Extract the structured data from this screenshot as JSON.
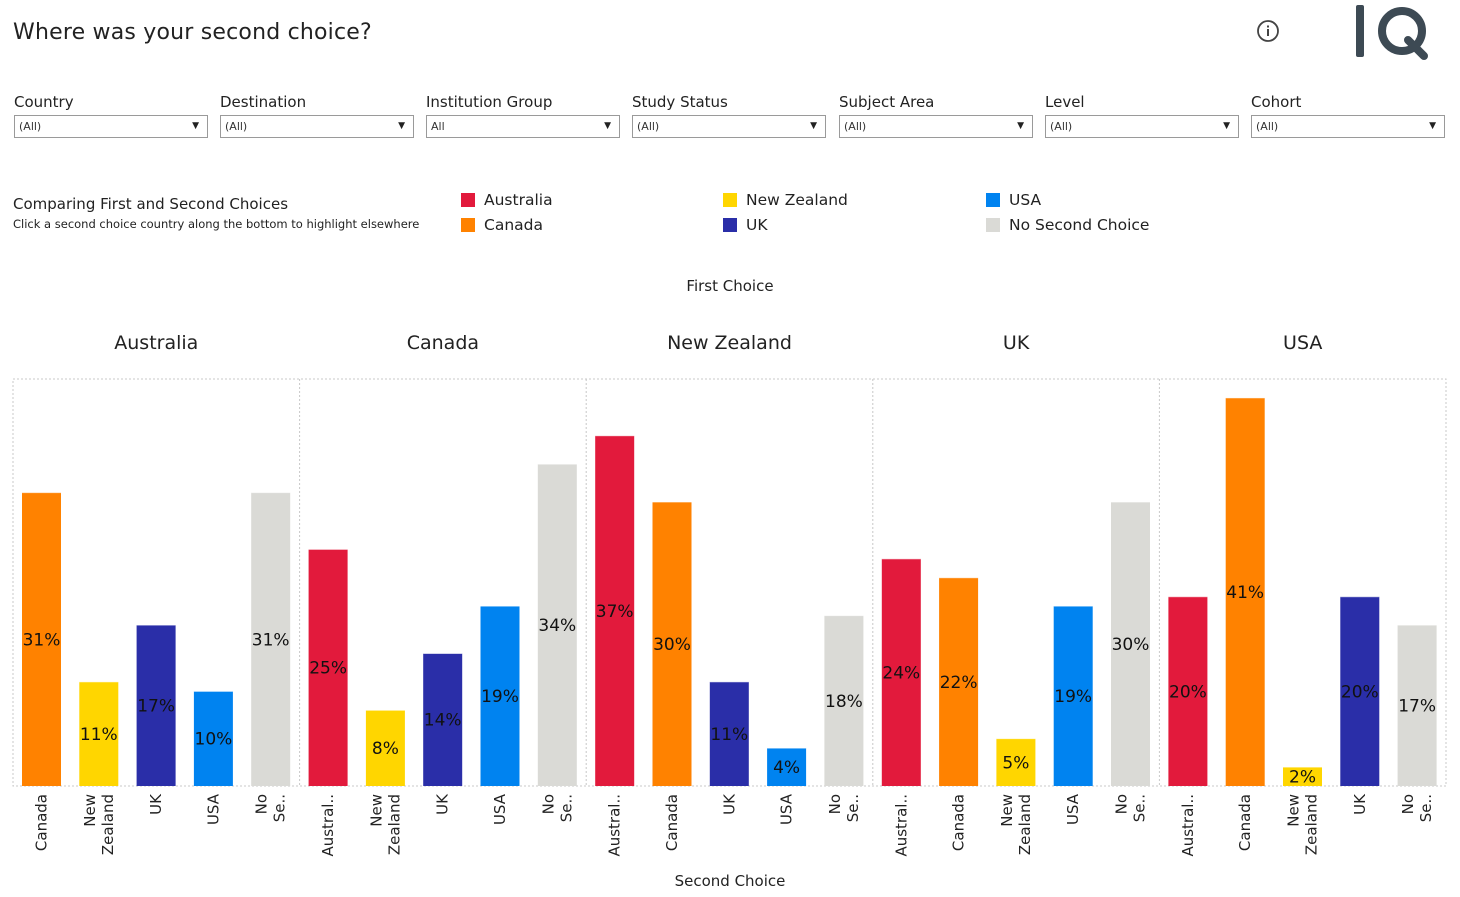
{
  "header": {
    "title": "Where was your second choice?",
    "info_icon": "info-circle-icon",
    "logo_text": "IQ"
  },
  "filters": [
    {
      "label": "Country",
      "value": "(All)"
    },
    {
      "label": "Destination",
      "value": "(All)"
    },
    {
      "label": "Institution Group",
      "value": "All"
    },
    {
      "label": "Study Status",
      "value": "(All)"
    },
    {
      "label": "Subject Area",
      "value": "(All)"
    },
    {
      "label": "Level",
      "value": "(All)"
    },
    {
      "label": "Cohort",
      "value": "(All)"
    }
  ],
  "section": {
    "title": "Comparing First and Second Choices",
    "subtitle": "Click a second choice country along the bottom to highlight elsewhere"
  },
  "legend": [
    {
      "label": "Australia",
      "color": "#e21a3c"
    },
    {
      "label": "Canada",
      "color": "#ff8200"
    },
    {
      "label": "New Zealand",
      "color": "#ffd600"
    },
    {
      "label": "UK",
      "color": "#2a2ea8"
    },
    {
      "label": "USA",
      "color": "#0083f0"
    },
    {
      "label": "No Second Choice",
      "color": "#dadad6"
    }
  ],
  "chart_data": {
    "type": "bar",
    "title": "First Choice",
    "xlabel": "Second Choice",
    "ylabel": "",
    "ylim": [
      0,
      43
    ],
    "value_suffix": "%",
    "panels": [
      {
        "first_choice": "Australia",
        "bars": [
          {
            "label": "Canada",
            "value": 31,
            "color": "#ff8200"
          },
          {
            "label": "New Zealand",
            "value": 11,
            "color": "#ffd600"
          },
          {
            "label": "UK",
            "value": 17,
            "color": "#2a2ea8"
          },
          {
            "label": "USA",
            "value": 10,
            "color": "#0083f0"
          },
          {
            "label": "No Se..",
            "value": 31,
            "color": "#dadad6"
          }
        ]
      },
      {
        "first_choice": "Canada",
        "bars": [
          {
            "label": "Austral..",
            "value": 25,
            "color": "#e21a3c"
          },
          {
            "label": "New Zealand",
            "value": 8,
            "color": "#ffd600"
          },
          {
            "label": "UK",
            "value": 14,
            "color": "#2a2ea8"
          },
          {
            "label": "USA",
            "value": 19,
            "color": "#0083f0"
          },
          {
            "label": "No Se..",
            "value": 34,
            "color": "#dadad6"
          }
        ]
      },
      {
        "first_choice": "New Zealand",
        "bars": [
          {
            "label": "Austral..",
            "value": 37,
            "color": "#e21a3c"
          },
          {
            "label": "Canada",
            "value": 30,
            "color": "#ff8200"
          },
          {
            "label": "UK",
            "value": 11,
            "color": "#2a2ea8"
          },
          {
            "label": "USA",
            "value": 4,
            "color": "#0083f0"
          },
          {
            "label": "No Se..",
            "value": 18,
            "color": "#dadad6"
          }
        ]
      },
      {
        "first_choice": "UK",
        "bars": [
          {
            "label": "Austral..",
            "value": 24,
            "color": "#e21a3c"
          },
          {
            "label": "Canada",
            "value": 22,
            "color": "#ff8200"
          },
          {
            "label": "New Zealand",
            "value": 5,
            "color": "#ffd600"
          },
          {
            "label": "USA",
            "value": 19,
            "color": "#0083f0"
          },
          {
            "label": "No Se..",
            "value": 30,
            "color": "#dadad6"
          }
        ]
      },
      {
        "first_choice": "USA",
        "bars": [
          {
            "label": "Austral..",
            "value": 20,
            "color": "#e21a3c"
          },
          {
            "label": "Canada",
            "value": 41,
            "color": "#ff8200"
          },
          {
            "label": "New Zealand",
            "value": 2,
            "color": "#ffd600"
          },
          {
            "label": "UK",
            "value": 20,
            "color": "#2a2ea8"
          },
          {
            "label": "No Se..",
            "value": 17,
            "color": "#dadad6"
          }
        ]
      }
    ]
  }
}
